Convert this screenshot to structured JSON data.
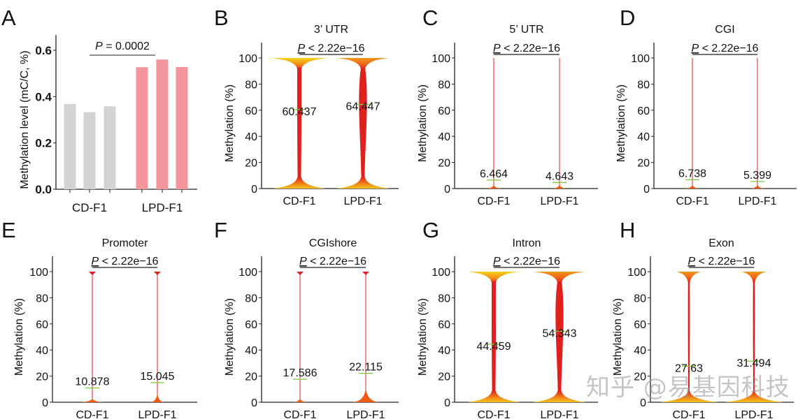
{
  "figure": {
    "watermark": "知乎 @易基因科技",
    "colors": {
      "cd_bar": "#d3d3d3",
      "lpd_bar": "#f2959d",
      "violin_core": "#e0201c",
      "violin_mid": "#ef5a17",
      "violin_tip": "#f4d21a",
      "median_line": "#7ccc3a",
      "axis": "#222222"
    }
  },
  "chart_data": [
    {
      "panel": "A",
      "type": "bar",
      "title": "",
      "ylabel": "Methylation level (mC/C, %)",
      "xlabel": "",
      "ylim": [
        0,
        0.6
      ],
      "yticks": [
        "0.0",
        "0.2",
        "0.4",
        "0.6"
      ],
      "categories": [
        "CD-F1",
        "LPD-F1"
      ],
      "series": [
        {
          "name": "CD-F1",
          "values": [
            0.368,
            0.333,
            0.358
          ]
        },
        {
          "name": "LPD-F1",
          "values": [
            0.527,
            0.56,
            0.528
          ]
        }
      ],
      "annotation": {
        "p_label": "P",
        "p_text": " = 0.0002"
      }
    },
    {
      "panel": "B",
      "type": "violin",
      "title": "3’ UTR",
      "ylabel": "Methylation (%)",
      "ylim": [
        0,
        100
      ],
      "yticks": [
        "0",
        "20",
        "40",
        "60",
        "80",
        "100"
      ],
      "categories": [
        "CD-F1",
        "LPD-F1"
      ],
      "medians": [
        60.437,
        64.447
      ],
      "median_labels": [
        "60.437",
        "64.447"
      ],
      "shape": "bimodal",
      "annotation": {
        "p_label": "P",
        "p_text": " < 2.22e−16"
      }
    },
    {
      "panel": "C",
      "type": "violin",
      "title": "5’ UTR",
      "ylabel": "Methylation (%)",
      "ylim": [
        0,
        100
      ],
      "yticks": [
        "0",
        "20",
        "40",
        "60",
        "80",
        "100"
      ],
      "categories": [
        "CD-F1",
        "LPD-F1"
      ],
      "medians": [
        6.464,
        4.643
      ],
      "median_labels": [
        "6.464",
        "4.643"
      ],
      "shape": "low",
      "annotation": {
        "p_label": "P",
        "p_text": " < 2.22e−16"
      }
    },
    {
      "panel": "D",
      "type": "violin",
      "title": "CGI",
      "ylabel": "Methylation (%)",
      "ylim": [
        0,
        100
      ],
      "yticks": [
        "0",
        "20",
        "40",
        "60",
        "80",
        "100"
      ],
      "categories": [
        "CD-F1",
        "LPD-F1"
      ],
      "medians": [
        6.738,
        5.399
      ],
      "median_labels": [
        "6.738",
        "5.399"
      ],
      "shape": "low",
      "annotation": {
        "p_label": "P",
        "p_text": " < 2.22e−16"
      }
    },
    {
      "panel": "E",
      "type": "violin",
      "title": "Promoter",
      "ylabel": "Methylation (%)",
      "ylim": [
        0,
        100
      ],
      "yticks": [
        "0",
        "20",
        "40",
        "60",
        "80",
        "100"
      ],
      "categories": [
        "CD-F1",
        "LPD-F1"
      ],
      "medians": [
        10.878,
        15.045
      ],
      "median_labels": [
        "10.878",
        "15.045"
      ],
      "shape": "low",
      "annotation": {
        "p_label": "P",
        "p_text": " < 2.22e−16"
      }
    },
    {
      "panel": "F",
      "type": "violin",
      "title": "CGIshore",
      "ylabel": "Methylation (%)",
      "ylim": [
        0,
        100
      ],
      "yticks": [
        "0",
        "20",
        "40",
        "60",
        "80",
        "100"
      ],
      "categories": [
        "CD-F1",
        "LPD-F1"
      ],
      "medians": [
        17.586,
        22.115
      ],
      "median_labels": [
        "17.586",
        "22.115"
      ],
      "shape": "low",
      "annotation": {
        "p_label": "P",
        "p_text": " < 2.22e−16"
      }
    },
    {
      "panel": "G",
      "type": "violin",
      "title": "Intron",
      "ylabel": "Methylation (%)",
      "ylim": [
        0,
        100
      ],
      "yticks": [
        "0",
        "20",
        "40",
        "60",
        "80",
        "100"
      ],
      "categories": [
        "CD-F1",
        "LPD-F1"
      ],
      "medians": [
        44.459,
        54.343
      ],
      "median_labels": [
        "44.459",
        "54.343"
      ],
      "shape": "bimodal",
      "annotation": {
        "p_label": "P",
        "p_text": " < 2.22e−16"
      }
    },
    {
      "panel": "H",
      "type": "violin",
      "title": "Exon",
      "ylabel": "Methylation (%)",
      "ylim": [
        0,
        100
      ],
      "yticks": [
        "0",
        "20",
        "40",
        "60",
        "80",
        "100"
      ],
      "categories": [
        "CD-F1",
        "LPD-F1"
      ],
      "medians": [
        27.63,
        31.494
      ],
      "median_labels": [
        "27.63",
        "31.494"
      ],
      "shape": "bimodal-thin",
      "annotation": {
        "p_label": "P",
        "p_text": " < 2.22e−16"
      }
    }
  ]
}
